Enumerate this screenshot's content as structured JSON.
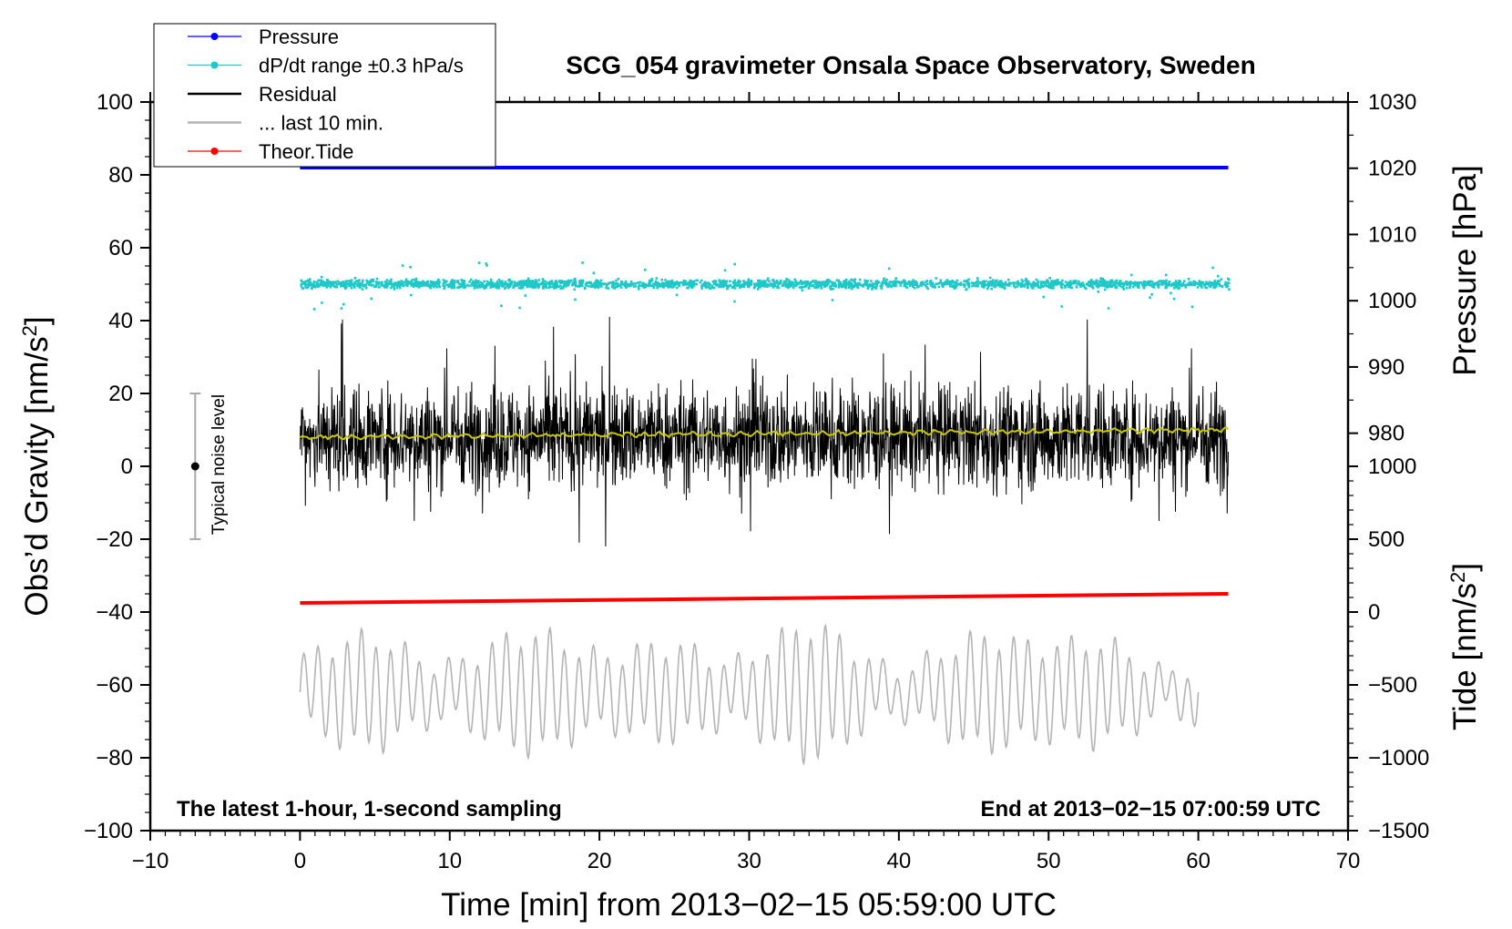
{
  "chart_data": {
    "type": "line",
    "title": "SCG_054 gravimeter Onsala Space Observatory, Sweden",
    "xlabel": "Time [min] from 2013−02−15 05:59:00 UTC",
    "ylabel_main": "Obs’d Gravity [nm/s",
    "ylabel_sup": "2",
    "ylabel_close": "]",
    "ylabel_pressure": "Pressure [hPa]",
    "ylabel_tide": "Tide [nm/s",
    "ylabel_tide_sup": "2",
    "ylabel_tide_close": "]",
    "xlim": [
      -10,
      70
    ],
    "ylim": [
      -100,
      100
    ],
    "x_ticks": [
      -10,
      0,
      10,
      20,
      30,
      40,
      50,
      60,
      70
    ],
    "x_tick_labels": [
      "−10",
      "0",
      "10",
      "20",
      "30",
      "40",
      "50",
      "60",
      "70"
    ],
    "y_ticks": [
      -100,
      -80,
      -60,
      -40,
      -20,
      0,
      20,
      40,
      60,
      80,
      100
    ],
    "y_tick_labels": [
      "−100",
      "−80",
      "−60",
      "−40",
      "−20",
      "0",
      "20",
      "40",
      "60",
      "80",
      "100"
    ],
    "pressure_axis": {
      "ticks": [
        1030,
        1020,
        1010,
        1000,
        990,
        980
      ],
      "labels": [
        "1030",
        "1020",
        "1010",
        "1000",
        "990",
        "980"
      ],
      "range": [
        920,
        1030
      ]
    },
    "tide_axis": {
      "ticks": [
        1000,
        500,
        0,
        -500,
        -1000,
        -1500
      ],
      "labels": [
        "1000",
        "500",
        "0",
        "−500",
        "−1000",
        "−1500"
      ],
      "range": [
        -1500,
        3500
      ]
    },
    "legend": {
      "placement": "top-left",
      "entries": [
        {
          "label": "Pressure",
          "color": "#0000ff",
          "marker": "dot"
        },
        {
          "label": "dP/dt range ±0.3 hPa/s",
          "color": "#1ec8c8",
          "marker": "dot"
        },
        {
          "label": "Residual",
          "color": "#000000",
          "marker": "line"
        },
        {
          "label": "... last 10 min.",
          "color": "#b4b4b4",
          "marker": "line"
        },
        {
          "label": "Theor.Tide",
          "color": "#ff0000",
          "marker": "dot"
        }
      ]
    },
    "series": [
      {
        "name": "Pressure",
        "axis": "pressure",
        "color": "#0000ff",
        "x_range": [
          0,
          62
        ],
        "value_hPa": 1020.1
      },
      {
        "name": "dP/dt",
        "color": "#1ec8c8",
        "x_range": [
          0,
          62
        ],
        "center": 50,
        "spread": 1.3,
        "outlier_range": [
          43,
          56
        ]
      },
      {
        "name": "Residual",
        "color": "#000000",
        "x_range": [
          0,
          62
        ],
        "center": 8,
        "typical_range": [
          -15,
          30
        ],
        "extreme_range": [
          -22,
          43
        ]
      },
      {
        "name": "Residual smoothed",
        "color": "#c8c800",
        "x_range": [
          0,
          62
        ],
        "start": 8,
        "end": 10
      },
      {
        "name": "Theor.Tide",
        "color": "#ff0000",
        "x_range": [
          0,
          62
        ],
        "start": -37.5,
        "end": -35
      },
      {
        "name": "... last 10 min.",
        "color": "#b4b4b4",
        "x_range": [
          0,
          60
        ],
        "center": -62,
        "typical_range": [
          -80,
          -45
        ],
        "extreme_range": [
          -90,
          -37
        ]
      }
    ],
    "noise_indicator": {
      "label": "Typical noise level",
      "x": -7,
      "center": 0,
      "range": [
        -20,
        20
      ]
    },
    "annotations": {
      "left": "The latest 1-hour, 1-second sampling",
      "right": "End at 2013−02−15 07:00:59 UTC"
    }
  }
}
